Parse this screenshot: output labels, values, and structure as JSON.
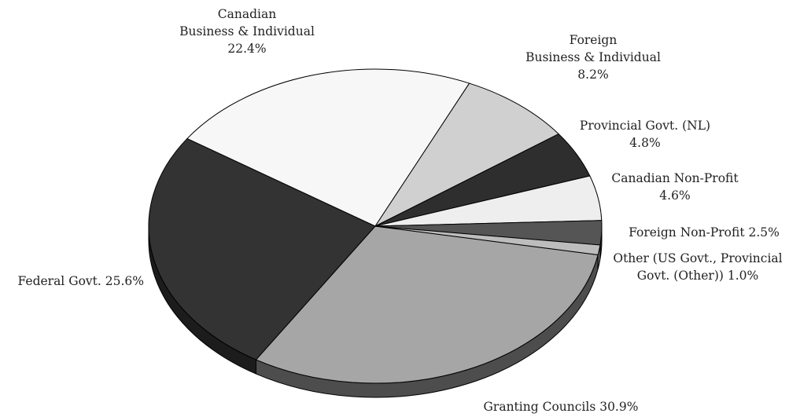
{
  "chart_data": {
    "type": "pie",
    "style": "3d-tilted",
    "legend": "none",
    "slices": [
      {
        "name": "Granting Councils",
        "value": 30.9,
        "value_label": "30.9%",
        "color": "#a6a6a6",
        "side_color": "#4d4d4d",
        "label_lines": [
          "Granting Councils 30.9%"
        ]
      },
      {
        "name": "Federal Govt.",
        "value": 25.6,
        "value_label": "25.6%",
        "color": "#333333",
        "side_color": "#1c1c1c",
        "label_lines": [
          "Federal Govt. 25.6%"
        ]
      },
      {
        "name": "Canadian Business & Individual",
        "value": 22.4,
        "value_label": "22.4%",
        "color": "#f7f7f7",
        "side_color": "#bdbdbd",
        "label_lines": [
          "Canadian",
          "Business & Individual",
          "22.4%"
        ]
      },
      {
        "name": "Foreign Business & Individual",
        "value": 8.2,
        "value_label": "8.2%",
        "color": "#d0d0d0",
        "side_color": "#8a8a8a",
        "label_lines": [
          "Foreign",
          "Business & Individual",
          "8.2%"
        ]
      },
      {
        "name": "Provincial Govt. (NL)",
        "value": 4.8,
        "value_label": "4.8%",
        "color": "#2e2e2e",
        "side_color": "#1a1a1a",
        "label_lines": [
          "Provincial Govt. (NL)",
          "4.8%"
        ]
      },
      {
        "name": "Canadian Non-Profit",
        "value": 4.6,
        "value_label": "4.6%",
        "color": "#eeeeee",
        "side_color": "#b0b0b0",
        "label_lines": [
          "Canadian Non-Profit",
          "4.6%"
        ]
      },
      {
        "name": "Foreign Non-Profit",
        "value": 2.5,
        "value_label": "2.5%",
        "color": "#555555",
        "side_color": "#2c2c2c",
        "label_lines": [
          "Foreign Non-Profit 2.5%"
        ]
      },
      {
        "name": "Other (US Govt., Provincial Govt. (Other))",
        "value": 1.0,
        "value_label": "1.0%",
        "color": "#bdbdbd",
        "side_color": "#6e6e6e",
        "label_lines": [
          "Other (US Govt., Provincial",
          "Govt. (Other)) 1.0%"
        ]
      }
    ]
  }
}
